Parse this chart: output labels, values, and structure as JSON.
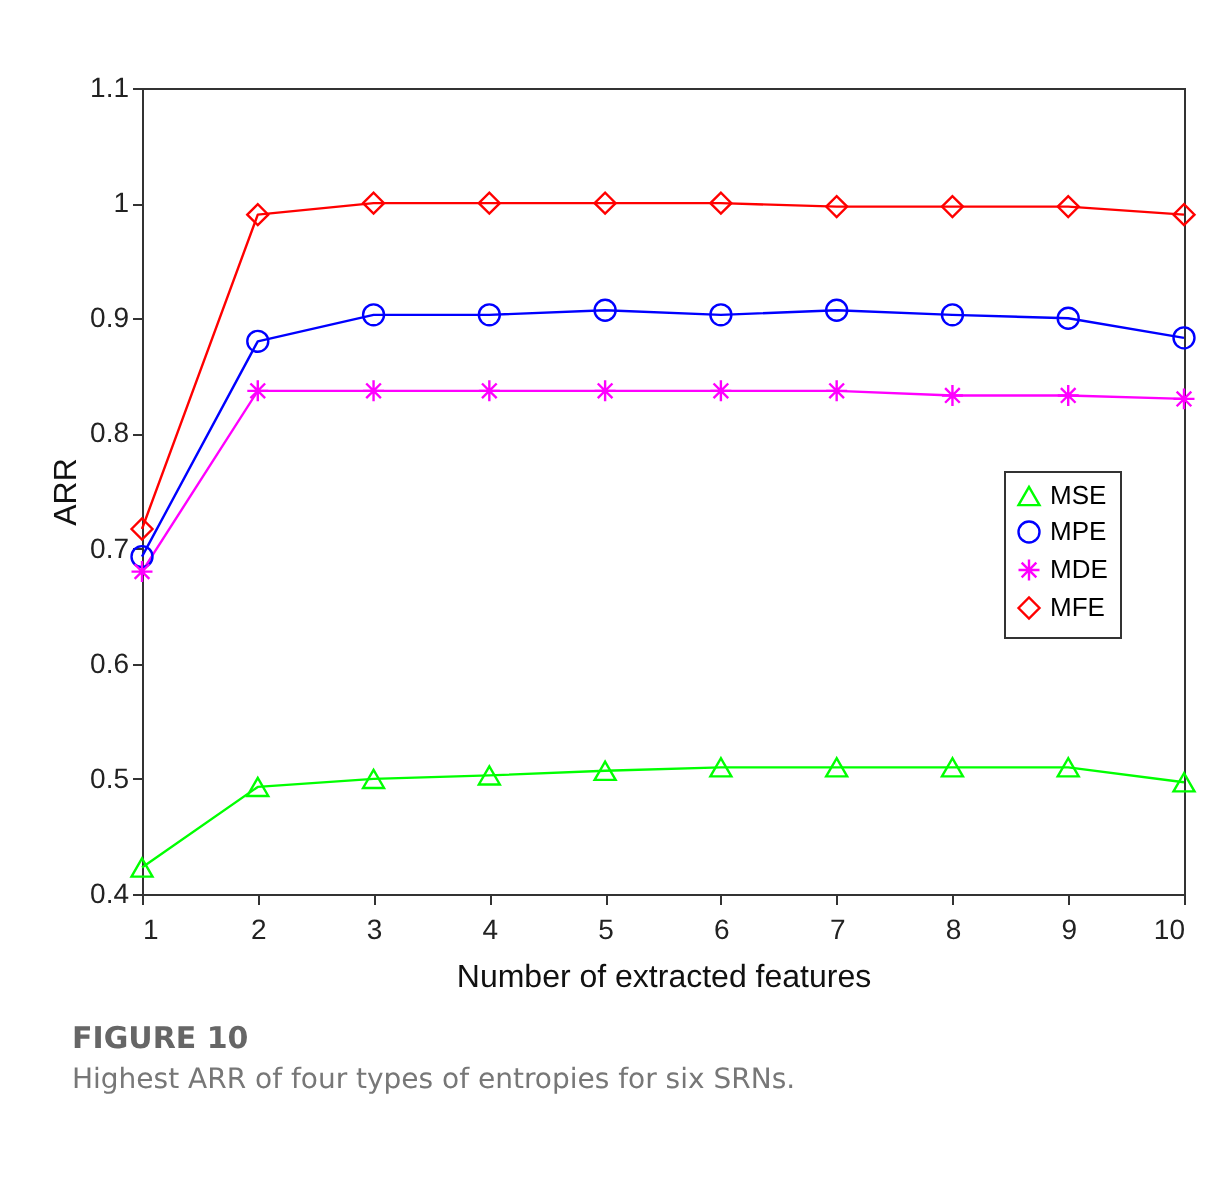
{
  "chart_data": {
    "type": "line",
    "xlabel": "Number of extracted features",
    "ylabel": "ARR",
    "x": [
      1,
      2,
      3,
      4,
      5,
      6,
      7,
      8,
      9,
      10
    ],
    "series": [
      {
        "name": "MSE",
        "color": "#00ff00",
        "marker": "triangle",
        "values": [
          0.423,
          0.493,
          0.5,
          0.503,
          0.507,
          0.51,
          0.51,
          0.51,
          0.51,
          0.497
        ]
      },
      {
        "name": "MPE",
        "color": "#0000ff",
        "marker": "circle",
        "values": [
          0.693,
          0.88,
          0.903,
          0.903,
          0.907,
          0.903,
          0.907,
          0.903,
          0.9,
          0.883
        ]
      },
      {
        "name": "MDE",
        "color": "#ff00ff",
        "marker": "cross",
        "values": [
          0.68,
          0.837,
          0.837,
          0.837,
          0.837,
          0.837,
          0.837,
          0.833,
          0.833,
          0.83
        ]
      },
      {
        "name": "MFE",
        "color": "#ff0000",
        "marker": "diamond",
        "values": [
          0.717,
          0.99,
          1,
          1,
          1,
          1,
          0.997,
          0.997,
          0.997,
          0.99
        ]
      }
    ],
    "xlim": [
      1,
      10
    ],
    "xticks": [
      1,
      2,
      3,
      4,
      5,
      6,
      7,
      8,
      9,
      10
    ],
    "ylim": [
      0.4,
      1.1
    ],
    "yticks": [
      0.4,
      0.5,
      0.6,
      0.7,
      0.8,
      0.9,
      1,
      1.1
    ],
    "grid": false,
    "legend": "right",
    "line_style": "solid",
    "annotations": [
      "FIGURE 10",
      "Highest ARR of four types of entropies for six SRNs."
    ]
  }
}
